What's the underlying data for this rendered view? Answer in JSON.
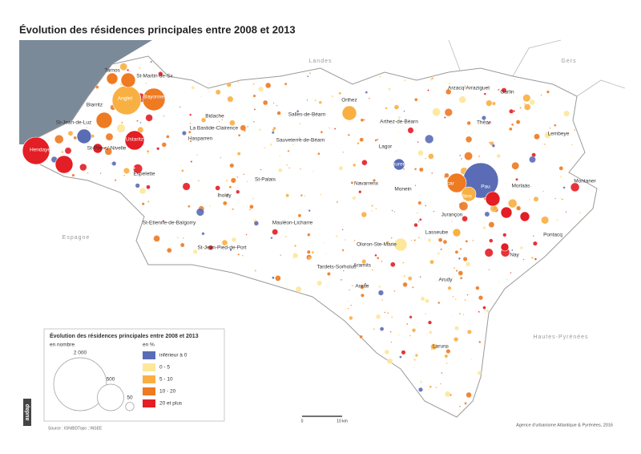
{
  "title": "Évolution des résidences principales entre 2008 et 2013",
  "regions": [
    "Landes",
    "Gers",
    "Espagne",
    "Hautes-Pyrénées"
  ],
  "places": [
    "Tarnos",
    "St-Martin-de-Sx",
    "Biarritz",
    "Anglet",
    "Bayonne",
    "St-Jean-de-Luz",
    "Hendaye",
    "St-Pée-s/-Nivelle",
    "Ustaritz",
    "Bidache",
    "La Bastide-Clairence",
    "Hasparren",
    "Espelette",
    "Salles-de-Béarn",
    "Sauveterre-de-Béarn",
    "Orthez",
    "Arthez-de-Béarn",
    "Arzacq-Arraziguet",
    "Garlin",
    "Thèze",
    "Lembeye",
    "Lagor",
    "Mourenx",
    "St-Palais",
    "Iholdy",
    "Navarrenx",
    "Monein",
    "Lescar",
    "Pau",
    "Billère",
    "Morlaàs",
    "Montaner",
    "Jurançon",
    "Lasseube",
    "Pontacq",
    "Nay",
    "St-Etienne-de-Baïgorry",
    "St-Jean-Pied-de-Port",
    "Mauléon-Licharre",
    "Oloron-Ste-Marie",
    "Tardets-Sorholus",
    "Aramits",
    "Arette",
    "Arudy",
    "Laruns"
  ],
  "legend": {
    "title": "Évolution des résidences principales entre 2008 et 2013",
    "size_title": "en nombre",
    "sizes": [
      {
        "value": 2000,
        "label": "2 000"
      },
      500,
      50
    ],
    "class_title": "en %",
    "classes": [
      {
        "label": "inférieur à 0",
        "color": "#5a6cb5"
      },
      {
        "label": "0 - 5",
        "color": "#fde79a"
      },
      {
        "label": "5 - 10",
        "color": "#f9b042"
      },
      {
        "label": "10 - 20",
        "color": "#ee7a22"
      },
      {
        "label": "20 et plus",
        "color": "#e31e24"
      }
    ]
  },
  "scale": [
    "0",
    "10 km"
  ],
  "source": "Source : IGN/BDTopo ; INSEE",
  "credit": "Agence d'urbanisme Atlantique & Pyrénées, 2016",
  "logo": "audap"
}
